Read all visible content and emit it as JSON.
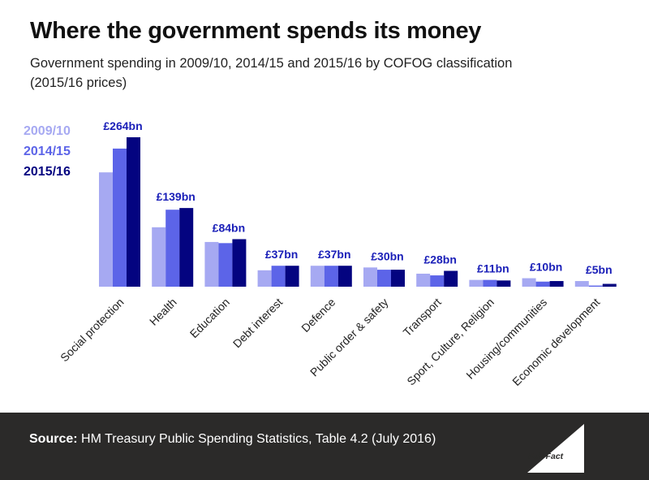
{
  "header": {
    "title": "Where the government spends its money",
    "subtitle": "Government spending in 2009/10, 2014/15 and 2015/16 by COFOG classification (2015/16 prices)"
  },
  "colors": {
    "series_2009": "#a6a9f2",
    "series_2014": "#5c64e8",
    "series_2015": "#040480",
    "label_color": "#1a1fb8",
    "footer_bg": "#2b2a29"
  },
  "chart_data": {
    "type": "bar",
    "title": "Where the government spends its money",
    "xlabel": "",
    "ylabel": "",
    "ylim": [
      0,
      264
    ],
    "categories": [
      "Social protection",
      "Health",
      "Education",
      "Debt interest",
      "Defence",
      "Public order & safety",
      "Transport",
      "Sport, Culture, Religion",
      "Housing/communities",
      "Economic development"
    ],
    "series": [
      {
        "name": "2009/10",
        "values": [
          202,
          105,
          79,
          29,
          37,
          34,
          23,
          12,
          15,
          10
        ]
      },
      {
        "name": "2014/15",
        "values": [
          244,
          136,
          77,
          37,
          37,
          30,
          20,
          12,
          9,
          2
        ]
      },
      {
        "name": "2015/16",
        "values": [
          264,
          139,
          84,
          37,
          37,
          30,
          28,
          11,
          10,
          5
        ]
      }
    ],
    "data_labels": [
      "£264bn",
      "£139bn",
      "£84bn",
      "£37bn",
      "£37bn",
      "£30bn",
      "£28bn",
      "£11bn",
      "£10bn",
      "£5bn"
    ],
    "legend": {
      "position": "top-left",
      "items": [
        "2009/10",
        "2014/15",
        "2015/16"
      ]
    }
  },
  "footer": {
    "source_label": "Source:",
    "source_text": " HM Treasury Public Spending Statistics, Table 4.2 (July 2016)",
    "logo_text": "Full Fact"
  }
}
